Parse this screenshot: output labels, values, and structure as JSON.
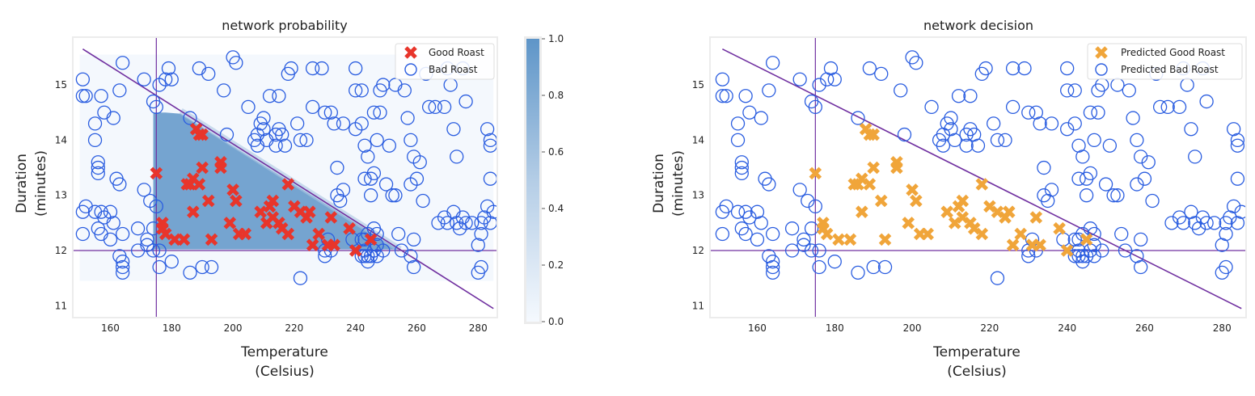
{
  "colors": {
    "good": "#e8352b",
    "bad": "#2a5de0",
    "pred_good": "#f0a53a",
    "line": "#7030a0",
    "heat": "#5e95c8",
    "axes_bg": "#ffffff",
    "frame": "#ececec"
  },
  "chart_data": [
    {
      "type": "scatter",
      "title": "network probability",
      "xlabel": "Temperature",
      "xlabel2": "(Celsius)",
      "ylabel": "Duration",
      "ylabel2": "(minutes)",
      "xlim": [
        148,
        286
      ],
      "ylim": [
        10.8,
        15.85
      ],
      "xticks": [
        160,
        180,
        200,
        220,
        240,
        260,
        280
      ],
      "yticks": [
        11,
        12,
        13,
        14,
        15
      ],
      "legend": [
        "Good Roast",
        "Bad Roast"
      ],
      "legend_loc": "top-right",
      "colorbar": {
        "ticks": [
          "0.0",
          "0.2",
          "0.4",
          "0.6",
          "0.8",
          "1.0"
        ],
        "range": [
          0,
          1
        ]
      },
      "heatmap_extent": {
        "x": [
          150,
          285
        ],
        "y": [
          11.45,
          15.55
        ]
      },
      "boundary_line": [
        [
          151,
          15.65
        ],
        [
          285,
          10.95
        ]
      ],
      "vline_x": 175,
      "hline_y": 12
    },
    {
      "type": "scatter",
      "title": "network decision",
      "xlabel": "Temperature",
      "xlabel2": "(Celsius)",
      "ylabel": "Duration",
      "ylabel2": "(minutes)",
      "xlim": [
        148,
        286
      ],
      "ylim": [
        10.8,
        15.85
      ],
      "xticks": [
        160,
        180,
        200,
        220,
        240,
        260,
        280
      ],
      "yticks": [
        11,
        12,
        13,
        14,
        15
      ],
      "legend": [
        "Predicted Good Roast",
        "Predicted Bad Roast"
      ],
      "legend_loc": "top-right",
      "boundary_line": [
        [
          151,
          15.65
        ],
        [
          285,
          10.95
        ]
      ],
      "vline_x": 175,
      "hline_y": 12
    }
  ],
  "points": {
    "good": [
      [
        175,
        13.4
      ],
      [
        177,
        12.5
      ],
      [
        177,
        12.4
      ],
      [
        178,
        12.3
      ],
      [
        181,
        12.2
      ],
      [
        184,
        12.2
      ],
      [
        185,
        13.2
      ],
      [
        186,
        13.2
      ],
      [
        187,
        12.7
      ],
      [
        187,
        13.3
      ],
      [
        188,
        14.2
      ],
      [
        189,
        14.1
      ],
      [
        189,
        13.2
      ],
      [
        190,
        13.5
      ],
      [
        190,
        14.1
      ],
      [
        192,
        12.9
      ],
      [
        193,
        12.2
      ],
      [
        196,
        13.6
      ],
      [
        196,
        13.5
      ],
      [
        199,
        12.5
      ],
      [
        200,
        13.1
      ],
      [
        201,
        12.9
      ],
      [
        202,
        12.3
      ],
      [
        204,
        12.3
      ],
      [
        209,
        12.7
      ],
      [
        211,
        12.5
      ],
      [
        212,
        12.8
      ],
      [
        213,
        12.9
      ],
      [
        213,
        12.6
      ],
      [
        215,
        12.5
      ],
      [
        216,
        12.4
      ],
      [
        218,
        13.2
      ],
      [
        218,
        12.3
      ],
      [
        220,
        12.8
      ],
      [
        222,
        12.7
      ],
      [
        224,
        12.6
      ],
      [
        225,
        12.7
      ],
      [
        226,
        12.1
      ],
      [
        228,
        12.3
      ],
      [
        231,
        12.1
      ],
      [
        232,
        12.6
      ],
      [
        233,
        12.1
      ],
      [
        238,
        12.4
      ],
      [
        240,
        12.0
      ],
      [
        245,
        12.2
      ]
    ],
    "bad": [
      [
        151,
        15.1
      ],
      [
        151,
        14.8
      ],
      [
        152,
        14.8
      ],
      [
        155,
        14.3
      ],
      [
        155,
        14.0
      ],
      [
        156,
        13.6
      ],
      [
        156,
        13.5
      ],
      [
        156,
        13.4
      ],
      [
        157,
        14.8
      ],
      [
        158,
        14.5
      ],
      [
        161,
        14.4
      ],
      [
        163,
        14.9
      ],
      [
        164,
        15.4
      ],
      [
        162,
        13.3
      ],
      [
        163,
        13.2
      ],
      [
        151,
        12.7
      ],
      [
        152,
        12.8
      ],
      [
        155,
        12.7
      ],
      [
        157,
        12.7
      ],
      [
        158,
        12.6
      ],
      [
        160,
        12.7
      ],
      [
        161,
        12.5
      ],
      [
        156,
        12.4
      ],
      [
        157,
        12.3
      ],
      [
        160,
        12.2
      ],
      [
        163,
        11.9
      ],
      [
        164,
        11.8
      ],
      [
        164,
        11.7
      ],
      [
        164,
        11.6
      ],
      [
        151,
        12.3
      ],
      [
        164,
        12.3
      ],
      [
        169,
        12.4
      ],
      [
        172,
        12.1
      ],
      [
        172,
        12.2
      ],
      [
        174,
        12.4
      ],
      [
        174,
        12.0
      ],
      [
        176,
        11.7
      ],
      [
        171,
        13.1
      ],
      [
        173,
        12.9
      ],
      [
        175,
        12.8
      ],
      [
        171,
        15.1
      ],
      [
        174,
        14.7
      ],
      [
        175,
        14.6
      ],
      [
        176,
        15.0
      ],
      [
        178,
        15.1
      ],
      [
        179,
        15.3
      ],
      [
        180,
        15.1
      ],
      [
        186,
        14.4
      ],
      [
        180,
        11.8
      ],
      [
        186,
        11.6
      ],
      [
        190,
        11.7
      ],
      [
        193,
        11.7
      ],
      [
        189,
        15.3
      ],
      [
        192,
        15.2
      ],
      [
        197,
        14.9
      ],
      [
        198,
        14.1
      ],
      [
        200,
        15.5
      ],
      [
        201,
        15.4
      ],
      [
        205,
        14.6
      ],
      [
        207,
        14.0
      ],
      [
        208,
        14.1
      ],
      [
        208,
        13.9
      ],
      [
        209,
        14.3
      ],
      [
        210,
        14.4
      ],
      [
        210,
        14.2
      ],
      [
        211,
        14.0
      ],
      [
        212,
        14.8
      ],
      [
        214,
        14.1
      ],
      [
        214,
        13.9
      ],
      [
        215,
        14.8
      ],
      [
        215,
        14.2
      ],
      [
        216,
        14.1
      ],
      [
        217,
        13.9
      ],
      [
        218,
        15.2
      ],
      [
        219,
        15.3
      ],
      [
        221,
        14.3
      ],
      [
        222,
        14.0
      ],
      [
        224,
        14.0
      ],
      [
        226,
        15.3
      ],
      [
        226,
        14.6
      ],
      [
        229,
        15.3
      ],
      [
        230,
        14.5
      ],
      [
        232,
        14.5
      ],
      [
        233,
        14.3
      ],
      [
        234,
        13.5
      ],
      [
        234,
        13.0
      ],
      [
        235,
        12.9
      ],
      [
        236,
        14.3
      ],
      [
        236,
        13.1
      ],
      [
        240,
        15.3
      ],
      [
        240,
        14.9
      ],
      [
        240,
        14.2
      ],
      [
        242,
        14.9
      ],
      [
        242,
        14.3
      ],
      [
        244,
        13.7
      ],
      [
        245,
        13.3
      ],
      [
        245,
        13.0
      ],
      [
        246,
        13.4
      ],
      [
        247,
        14.0
      ],
      [
        248,
        14.5
      ],
      [
        249,
        15.0
      ],
      [
        251,
        13.9
      ],
      [
        252,
        13.0
      ],
      [
        253,
        15.0
      ],
      [
        254,
        12.3
      ],
      [
        256,
        14.9
      ],
      [
        257,
        14.4
      ],
      [
        258,
        14.0
      ],
      [
        258,
        13.2
      ],
      [
        259,
        13.7
      ],
      [
        260,
        13.3
      ],
      [
        261,
        13.6
      ],
      [
        262,
        12.9
      ],
      [
        263,
        15.2
      ],
      [
        264,
        14.6
      ],
      [
        266,
        14.6
      ],
      [
        267,
        12.5
      ],
      [
        269,
        14.6
      ],
      [
        270,
        15.3
      ],
      [
        271,
        15.0
      ],
      [
        272,
        14.2
      ],
      [
        273,
        13.7
      ],
      [
        275,
        15.3
      ],
      [
        276,
        14.7
      ],
      [
        273,
        12.5
      ],
      [
        274,
        12.4
      ],
      [
        270,
        12.5
      ],
      [
        269,
        12.6
      ],
      [
        272,
        12.7
      ],
      [
        275,
        12.6
      ],
      [
        276,
        12.5
      ],
      [
        278,
        12.5
      ],
      [
        281,
        12.5
      ],
      [
        281,
        12.3
      ],
      [
        282,
        12.6
      ],
      [
        283,
        12.8
      ],
      [
        284,
        12.5
      ],
      [
        284,
        13.9
      ],
      [
        284,
        14.0
      ],
      [
        283,
        14.2
      ],
      [
        284,
        13.3
      ],
      [
        285,
        12.7
      ],
      [
        280,
        12.1
      ],
      [
        281,
        11.7
      ],
      [
        280,
        11.6
      ],
      [
        249,
        12.0
      ],
      [
        247,
        12.3
      ],
      [
        246,
        12.4
      ],
      [
        247,
        12.1
      ],
      [
        247,
        11.9
      ],
      [
        245,
        11.9
      ],
      [
        244,
        11.8
      ],
      [
        244,
        11.9
      ],
      [
        243,
        12.0
      ],
      [
        243,
        11.9
      ],
      [
        242,
        11.9
      ],
      [
        246,
        12.0
      ],
      [
        242,
        12.2
      ],
      [
        243,
        12.2
      ],
      [
        244,
        12.3
      ],
      [
        239,
        12.2
      ],
      [
        232,
        12.0
      ],
      [
        230,
        11.9
      ],
      [
        222,
        11.5
      ],
      [
        255,
        12.0
      ],
      [
        258,
        11.9
      ],
      [
        259,
        12.2
      ],
      [
        259,
        11.7
      ],
      [
        250,
        13.2
      ],
      [
        253,
        13.0
      ],
      [
        243,
        13.3
      ],
      [
        243,
        13.9
      ],
      [
        246,
        14.5
      ],
      [
        248,
        14.9
      ],
      [
        230,
        12.0
      ],
      [
        231,
        12.2
      ],
      [
        176,
        12.0
      ],
      [
        169,
        12.0
      ]
    ]
  }
}
